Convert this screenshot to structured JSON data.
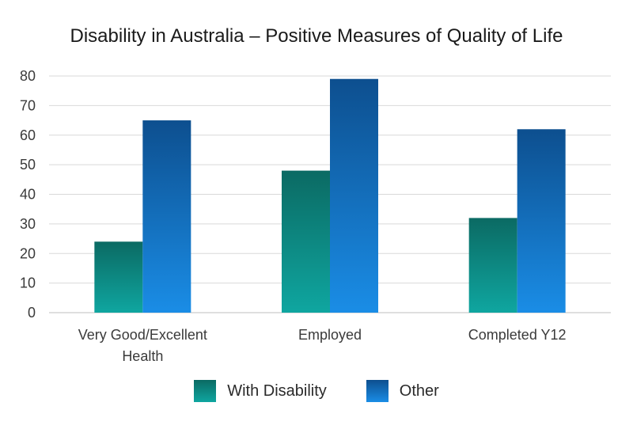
{
  "chart_data": {
    "type": "bar",
    "title": "Disability in Australia – Positive Measures of Quality of Life",
    "categories": [
      [
        "Very Good/Excellent",
        "Health"
      ],
      [
        "Employed"
      ],
      [
        "Completed Y12"
      ]
    ],
    "series": [
      {
        "name": "With Disability",
        "values": [
          24,
          48,
          32
        ],
        "color_top": "#0b6a63",
        "color_bottom": "#0fa6a0"
      },
      {
        "name": "Other",
        "values": [
          65,
          79,
          62
        ],
        "color_top": "#0d4f8f",
        "color_bottom": "#1a8de6"
      }
    ],
    "ylim": [
      0,
      80
    ],
    "yticks": [
      0,
      10,
      20,
      30,
      40,
      50,
      60,
      70,
      80
    ],
    "grid": true,
    "legend_position": "bottom"
  }
}
